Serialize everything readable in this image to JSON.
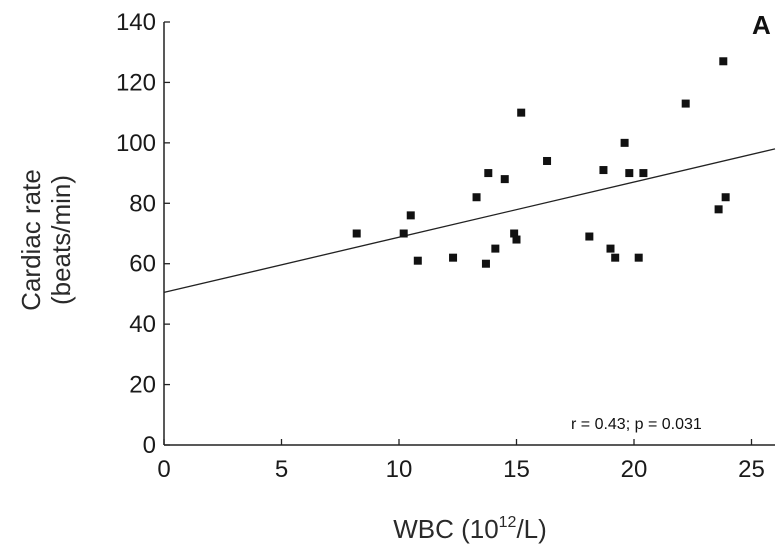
{
  "chart_data": {
    "type": "scatter",
    "panel_label": "A",
    "ylabel_line1": "Cardiac rate",
    "ylabel_line2": "(beats/min)",
    "xlabel_prefix": "WBC (10",
    "xlabel_sup": "12",
    "xlabel_suffix": "/L)",
    "xlim": [
      0,
      26
    ],
    "ylim": [
      0,
      140
    ],
    "x_ticks": [
      0,
      5,
      10,
      15,
      20,
      25
    ],
    "y_ticks": [
      0,
      20,
      40,
      60,
      80,
      100,
      120,
      140
    ],
    "annotation": "r = 0.43; p = 0.031",
    "points": [
      {
        "x": 8.2,
        "y": 70
      },
      {
        "x": 10.2,
        "y": 70
      },
      {
        "x": 10.5,
        "y": 76
      },
      {
        "x": 10.8,
        "y": 61
      },
      {
        "x": 12.3,
        "y": 62
      },
      {
        "x": 13.3,
        "y": 82
      },
      {
        "x": 13.7,
        "y": 60
      },
      {
        "x": 13.8,
        "y": 90
      },
      {
        "x": 14.1,
        "y": 65
      },
      {
        "x": 14.5,
        "y": 88
      },
      {
        "x": 14.9,
        "y": 70
      },
      {
        "x": 15.0,
        "y": 68
      },
      {
        "x": 15.2,
        "y": 110
      },
      {
        "x": 16.3,
        "y": 94
      },
      {
        "x": 18.1,
        "y": 69
      },
      {
        "x": 18.7,
        "y": 91
      },
      {
        "x": 19.0,
        "y": 65
      },
      {
        "x": 19.2,
        "y": 62
      },
      {
        "x": 19.6,
        "y": 100
      },
      {
        "x": 19.8,
        "y": 90
      },
      {
        "x": 20.2,
        "y": 62
      },
      {
        "x": 20.4,
        "y": 90
      },
      {
        "x": 22.2,
        "y": 113
      },
      {
        "x": 23.6,
        "y": 78
      },
      {
        "x": 23.8,
        "y": 127
      },
      {
        "x": 23.9,
        "y": 82
      }
    ],
    "trendline": {
      "x": [
        0,
        26
      ],
      "y": [
        50.5,
        98
      ]
    }
  }
}
